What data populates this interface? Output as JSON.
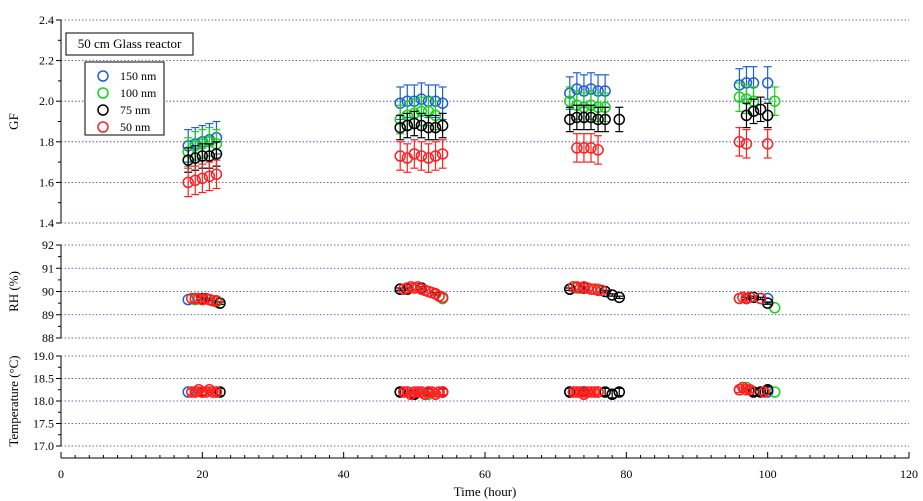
{
  "chart_data": {
    "type": "scatter",
    "xlabel": "Time (hour)",
    "xlim": [
      0,
      120
    ],
    "xticks": [
      "0",
      "20",
      "40",
      "60",
      "80",
      "100",
      "120"
    ],
    "x_minor_step": 2,
    "grid": "dotted horizontal",
    "colors": {
      "150 nm": "#1f5fd6",
      "100 nm": "#19d319",
      "75 nm": "#000000",
      "50 nm": "#ff2020",
      "grid": "#3a3aa8"
    },
    "legend_placement": "top-left",
    "panels": [
      {
        "id": "gf",
        "ylabel": "GF",
        "ylim": [
          1.4,
          2.4
        ],
        "yticks": [
          "1.4",
          "1.6",
          "1.8",
          "2.0",
          "2.2",
          "2.4"
        ],
        "title_box": "50 cm Glass reactor",
        "legend": [
          "150 nm",
          "100 nm",
          "75 nm",
          "50 nm"
        ],
        "series": [
          {
            "name": "150 nm",
            "color": "#1f5fd6",
            "x": [
              18,
              19,
              20,
              21,
              22,
              48,
              49,
              50,
              51,
              52,
              53,
              54,
              72,
              73,
              74,
              75,
              76,
              77,
              96,
              97,
              98,
              100
            ],
            "y": [
              1.78,
              1.79,
              1.8,
              1.81,
              1.82,
              1.99,
              2.0,
              2.0,
              2.01,
              2.0,
              2.0,
              1.99,
              2.04,
              2.06,
              2.05,
              2.06,
              2.05,
              2.05,
              2.08,
              2.09,
              2.09,
              2.09
            ],
            "err": 0.08
          },
          {
            "name": "100 nm",
            "color": "#19d319",
            "x": [
              18,
              19,
              20,
              21,
              22,
              48,
              49,
              50,
              51,
              52,
              53,
              72,
              73,
              74,
              75,
              76,
              77,
              96,
              97,
              98,
              101
            ],
            "y": [
              1.75,
              1.78,
              1.79,
              1.8,
              1.79,
              1.91,
              1.93,
              1.94,
              1.95,
              1.95,
              1.93,
              2.0,
              1.98,
              1.97,
              1.98,
              1.97,
              1.97,
              2.02,
              2.01,
              2.0,
              2.0
            ],
            "err": 0.07
          },
          {
            "name": "75 nm",
            "color": "#000000",
            "x": [
              18,
              19,
              20,
              21,
              22,
              48,
              49,
              50,
              51,
              52,
              53,
              54,
              72,
              73,
              74,
              75,
              76,
              77,
              79,
              97,
              98,
              99,
              100
            ],
            "y": [
              1.71,
              1.72,
              1.73,
              1.73,
              1.74,
              1.87,
              1.88,
              1.89,
              1.88,
              1.87,
              1.87,
              1.88,
              1.91,
              1.92,
              1.92,
              1.92,
              1.91,
              1.91,
              1.91,
              1.93,
              1.95,
              1.96,
              1.93
            ],
            "err": 0.06
          },
          {
            "name": "50 nm",
            "color": "#ff2020",
            "x": [
              18,
              19,
              20,
              21,
              22,
              48,
              49,
              50,
              51,
              52,
              53,
              54,
              73,
              74,
              75,
              76,
              96,
              97,
              100
            ],
            "y": [
              1.6,
              1.61,
              1.62,
              1.63,
              1.64,
              1.73,
              1.72,
              1.74,
              1.73,
              1.72,
              1.73,
              1.74,
              1.77,
              1.77,
              1.77,
              1.76,
              1.8,
              1.79,
              1.79
            ],
            "err": 0.07
          }
        ]
      },
      {
        "id": "rh",
        "ylabel": "RH (%)",
        "ylim": [
          88,
          92
        ],
        "yticks": [
          "88",
          "89",
          "90",
          "91",
          "92"
        ],
        "series": [
          {
            "name": "150 nm",
            "color": "#1f5fd6",
            "x": [
              18,
              48,
              54,
              72,
              97,
              100
            ],
            "y": [
              89.65,
              90.1,
              89.7,
              90.1,
              89.7,
              89.7
            ]
          },
          {
            "name": "100 nm",
            "color": "#19d319",
            "x": [
              19,
              22,
              49,
              52,
              54,
              73,
              76,
              96,
              101
            ],
            "y": [
              89.65,
              89.55,
              90.1,
              90.0,
              89.7,
              90.15,
              90.1,
              89.7,
              89.3
            ]
          },
          {
            "name": "75 nm",
            "color": "#000000",
            "x": [
              20,
              21,
              22.5,
              48,
              49,
              51,
              53,
              72,
              74,
              77,
              78,
              79,
              97,
              98,
              99,
              100
            ],
            "y": [
              89.7,
              89.65,
              89.5,
              90.1,
              90.1,
              90.15,
              89.9,
              90.1,
              90.15,
              90.0,
              89.85,
              89.75,
              89.7,
              89.75,
              89.7,
              89.5
            ],
            "err": 0.05
          },
          {
            "name": "50 nm",
            "color": "#ff2020",
            "x": [
              18.5,
              19,
              19.5,
              20,
              20.5,
              21,
              21.5,
              22,
              48.5,
              49,
              49.5,
              50,
              50.5,
              51,
              51.5,
              52,
              52.5,
              53,
              53.5,
              54,
              72.5,
              73,
              73.5,
              74,
              74.5,
              75,
              75.5,
              76,
              76.5,
              96,
              96.5,
              97,
              97.5,
              99
            ],
            "y": [
              89.7,
              89.7,
              89.7,
              89.65,
              89.7,
              89.65,
              89.6,
              89.6,
              90.1,
              90.15,
              90.2,
              90.15,
              90.2,
              90.1,
              90.05,
              90.0,
              89.95,
              89.9,
              89.8,
              89.75,
              90.2,
              90.2,
              90.15,
              90.2,
              90.15,
              90.1,
              90.1,
              90.05,
              90.05,
              89.7,
              89.75,
              89.7,
              89.75,
              89.7
            ]
          }
        ]
      },
      {
        "id": "temp",
        "ylabel": "Temperature (°C)",
        "ylim": [
          17.0,
          19.0
        ],
        "yticks": [
          "17.0",
          "17.5",
          "18.0",
          "18.5",
          "19.0"
        ],
        "series": [
          {
            "name": "150 nm",
            "color": "#1f5fd6",
            "x": [
              18,
              48,
              54,
              72,
              96,
              100
            ],
            "y": [
              18.2,
              18.2,
              18.2,
              18.2,
              18.25,
              18.2
            ]
          },
          {
            "name": "100 nm",
            "color": "#19d319",
            "x": [
              19,
              22,
              49,
              52,
              73,
              76,
              97,
              101
            ],
            "y": [
              18.2,
              18.2,
              18.2,
              18.15,
              18.2,
              18.2,
              18.3,
              18.2
            ]
          },
          {
            "name": "75 nm",
            "color": "#000000",
            "x": [
              20,
              22.5,
              48,
              50,
              52,
              54,
              72,
              74,
              77,
              78,
              79,
              98,
              99,
              100
            ],
            "y": [
              18.2,
              18.2,
              18.2,
              18.15,
              18.2,
              18.2,
              18.2,
              18.2,
              18.2,
              18.15,
              18.2,
              18.2,
              18.2,
              18.25
            ],
            "err": 0.08
          },
          {
            "name": "50 nm",
            "color": "#ff2020",
            "x": [
              18.5,
              19,
              19.5,
              20,
              20.5,
              21,
              21.5,
              22,
              48.5,
              49,
              49.5,
              50,
              50.5,
              51,
              51.5,
              52,
              52.5,
              53,
              53.5,
              54,
              72.5,
              73,
              73.5,
              74,
              74.5,
              75,
              75.5,
              76,
              96,
              96.5,
              97,
              97.5,
              99.5
            ],
            "y": [
              18.2,
              18.2,
              18.25,
              18.2,
              18.2,
              18.25,
              18.2,
              18.2,
              18.2,
              18.2,
              18.15,
              18.2,
              18.2,
              18.2,
              18.15,
              18.2,
              18.2,
              18.15,
              18.2,
              18.2,
              18.2,
              18.2,
              18.2,
              18.15,
              18.2,
              18.2,
              18.2,
              18.2,
              18.25,
              18.3,
              18.25,
              18.25,
              18.2
            ],
            "err": 0.06
          }
        ]
      }
    ]
  }
}
